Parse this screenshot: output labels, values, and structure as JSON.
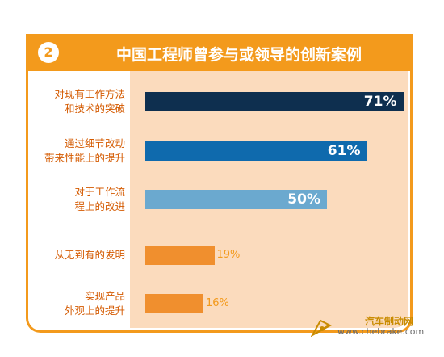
{
  "header": {
    "badge": "2",
    "title": "中国工程师曾参与或领导的创新案例"
  },
  "chart_data": {
    "type": "bar",
    "orientation": "horizontal",
    "title": "中国工程师曾参与或领导的创新案例",
    "categories": [
      "对现有工作方法\n和技术的突破",
      "通过细节改动\n带来性能上的提升",
      "对于工作流\n程上的改进",
      "从无到有的发明",
      "实现产品\n外观上的提升"
    ],
    "values": [
      71,
      61,
      50,
      19,
      16
    ],
    "value_labels": [
      "71%",
      "61%",
      "50%",
      "19%",
      "16%"
    ],
    "unit": "%",
    "xlim": [
      0,
      100
    ],
    "bar_colors": [
      "#0e2f4f",
      "#0f6aad",
      "#6ba9cf",
      "#f08f2e",
      "#f08f2e"
    ],
    "plot_background": "#fbdbbd",
    "grid": false
  },
  "colors": {
    "accent": "#f39a1c",
    "label_text": "#d45a00"
  },
  "watermark": {
    "cn": "汽车制动网",
    "url": "www.chebrake.com",
    "icon": "brake-logo-icon"
  }
}
